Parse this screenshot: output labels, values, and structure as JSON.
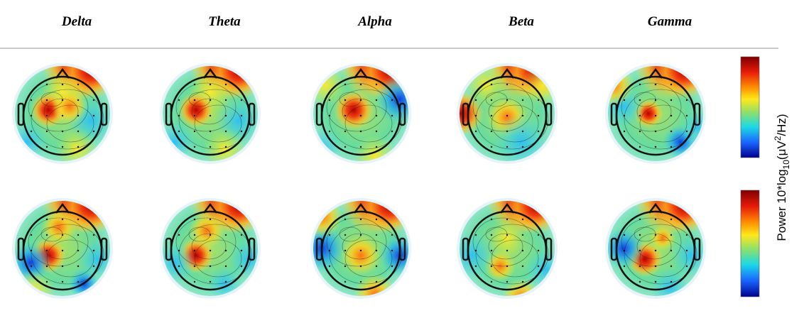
{
  "header": {
    "bands": [
      "Delta",
      "Theta",
      "Alpha",
      "Beta",
      "Gamma"
    ]
  },
  "colorbar_label": {
    "prefix": "Power 10*log",
    "sub": "10",
    "mid": "(μV",
    "sup": "2",
    "suffix": "/Hz)"
  }
}
